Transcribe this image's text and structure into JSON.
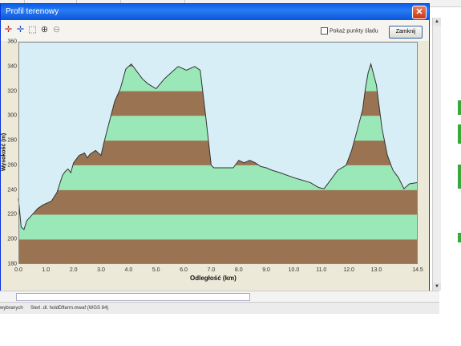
{
  "window": {
    "title": "Profil terenowy",
    "close_glyph": "✕",
    "show_points_label": "Pokaż punkty śladu",
    "close_button_label": "Zamknij"
  },
  "toolbar": {
    "tools": [
      {
        "name": "crosshair-red-icon",
        "glyph": "✛",
        "color": "#cc2020"
      },
      {
        "name": "crosshair-blue-icon",
        "glyph": "✛",
        "color": "#2050c8"
      },
      {
        "name": "zoom-area-icon",
        "glyph": "⬚",
        "color": "#444444"
      },
      {
        "name": "zoom-in-icon",
        "glyph": "⊕",
        "color": "#444444"
      },
      {
        "name": "zoom-out-icon",
        "glyph": "⊖",
        "color": "#999999"
      }
    ]
  },
  "status": {
    "left": "wybranych",
    "right": "Sterl. dl. holdDfterm.mwaf (WGS 84)"
  },
  "chart_data": {
    "type": "area",
    "xlabel": "Odległość (km)",
    "ylabel": "Wysokość (m)",
    "xlim": [
      0,
      14.5
    ],
    "ylim": [
      180,
      360
    ],
    "xticks": [
      {
        "v": 0,
        "label": "0.0"
      },
      {
        "v": 1,
        "label": "1.0"
      },
      {
        "v": 2,
        "label": "2.0"
      },
      {
        "v": 3,
        "label": "3.0"
      },
      {
        "v": 4,
        "label": "4.0"
      },
      {
        "v": 5,
        "label": "5.0"
      },
      {
        "v": 6,
        "label": "6.0"
      },
      {
        "v": 7,
        "label": "7.0"
      },
      {
        "v": 8,
        "label": "8.0"
      },
      {
        "v": 9,
        "label": "9.0"
      },
      {
        "v": 10,
        "label": "10.0"
      },
      {
        "v": 11,
        "label": "11.0"
      },
      {
        "v": 12,
        "label": "12.0"
      },
      {
        "v": 13,
        "label": "13.0"
      },
      {
        "v": 14.5,
        "label": "14.5"
      }
    ],
    "yticks": [
      {
        "v": 180,
        "label": "180"
      },
      {
        "v": 200,
        "label": "200"
      },
      {
        "v": 220,
        "label": "220"
      },
      {
        "v": 240,
        "label": "240"
      },
      {
        "v": 260,
        "label": "260"
      },
      {
        "v": 280,
        "label": "280"
      },
      {
        "v": 300,
        "label": "300"
      },
      {
        "v": 320,
        "label": "320"
      },
      {
        "v": 340,
        "label": "340"
      },
      {
        "v": 360,
        "label": "360"
      }
    ],
    "band_colors": [
      "#9a7452",
      "#9ae8b8"
    ],
    "band_step": 20,
    "line_color": "#333333",
    "x": [
      0,
      0.1,
      0.2,
      0.3,
      0.5,
      0.7,
      0.9,
      1.0,
      1.2,
      1.4,
      1.6,
      1.7,
      1.8,
      1.9,
      2.0,
      2.2,
      2.4,
      2.5,
      2.6,
      2.8,
      3.0,
      3.1,
      3.3,
      3.5,
      3.7,
      3.9,
      4.1,
      4.3,
      4.5,
      4.7,
      5.0,
      5.3,
      5.6,
      5.8,
      6.1,
      6.4,
      6.6,
      6.8,
      7.0,
      7.1,
      7.4,
      7.8,
      8.0,
      8.2,
      8.4,
      8.6,
      8.8,
      9.0,
      9.2,
      9.5,
      10.0,
      10.3,
      10.6,
      10.9,
      11.1,
      11.3,
      11.6,
      11.9,
      12.1,
      12.3,
      12.5,
      12.6,
      12.7,
      12.8,
      13.0,
      13.2,
      13.4,
      13.6,
      13.8,
      14.0,
      14.2,
      14.5
    ],
    "y": [
      233,
      210,
      208,
      215,
      220,
      225,
      228,
      229,
      231,
      238,
      252,
      255,
      257,
      254,
      262,
      268,
      270,
      266,
      269,
      272,
      268,
      278,
      295,
      312,
      322,
      338,
      342,
      336,
      330,
      326,
      322,
      330,
      336,
      340,
      337,
      340,
      337,
      300,
      260,
      258,
      258,
      258,
      264,
      262,
      264,
      262,
      259,
      258,
      256,
      254,
      250,
      248,
      246,
      242,
      241,
      247,
      256,
      260,
      272,
      288,
      305,
      322,
      335,
      342,
      325,
      290,
      268,
      256,
      250,
      241,
      245,
      246
    ]
  }
}
